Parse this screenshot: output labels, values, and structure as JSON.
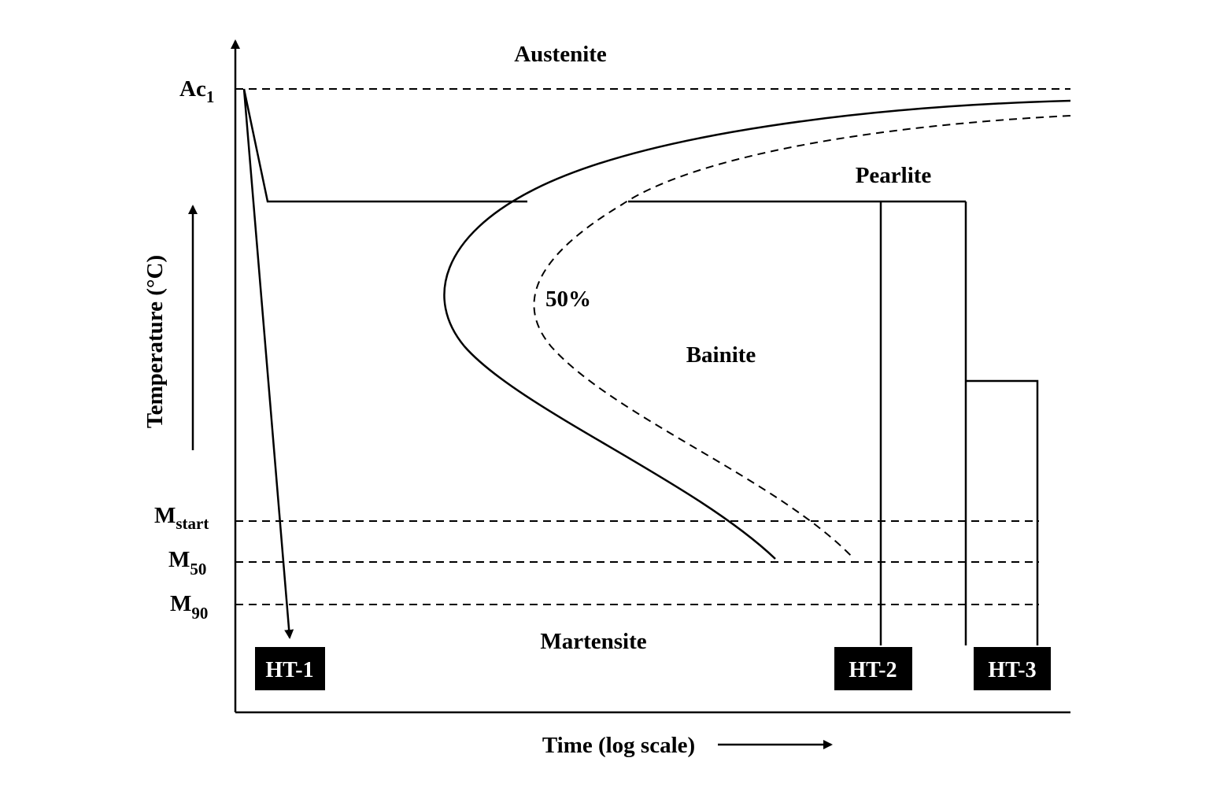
{
  "axes": {
    "x_label": "Time (log scale)",
    "y_label": "Temperature (°C)"
  },
  "temperature_levels": {
    "ac1": {
      "main": "Ac",
      "sub": "1"
    },
    "mstart": {
      "main": "M",
      "sub": "start"
    },
    "m50": {
      "main": "M",
      "sub": "50"
    },
    "m90": {
      "main": "M",
      "sub": "90"
    }
  },
  "regions": {
    "austenite": "Austenite",
    "pearlite": "Pearlite",
    "bainite": "Bainite",
    "martensite": "Martensite"
  },
  "curve_labels": {
    "fifty_percent": "50%"
  },
  "treatments": {
    "ht1": "HT-1",
    "ht2": "HT-2",
    "ht3": "HT-3"
  },
  "colors": {
    "line": "#000000",
    "box_fill": "#000000",
    "box_text": "#ffffff",
    "background": "#ffffff"
  }
}
